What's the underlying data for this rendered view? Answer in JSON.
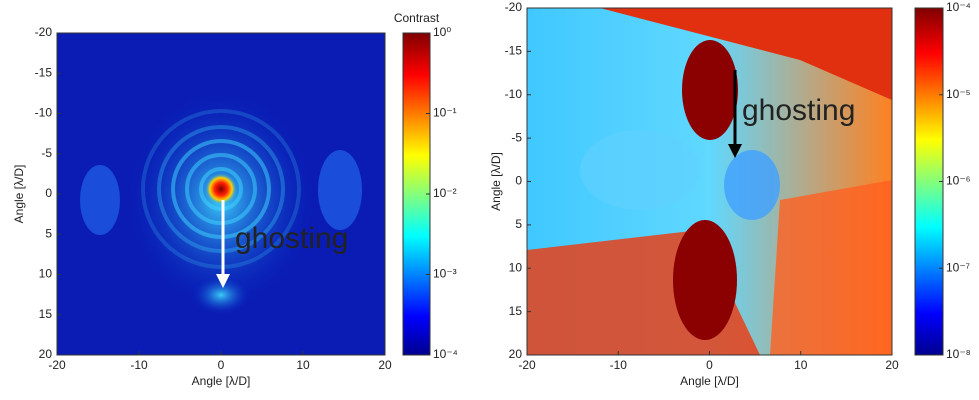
{
  "chart_data": [
    {
      "type": "heatmap",
      "xlabel": "Angle [λ/D]",
      "ylabel": "Angle [λ/D]",
      "colorbar_label": "Contrast",
      "xlim": [
        -20,
        20
      ],
      "xticks": [
        -20,
        -10,
        0,
        10,
        20
      ],
      "ylim": [
        20,
        -20
      ],
      "yticks": [
        -20,
        -15,
        -10,
        -5,
        0,
        5,
        10,
        15,
        20
      ],
      "clim": [
        0.0001,
        1
      ],
      "log_color": true,
      "colormap": "jet",
      "cticks": [
        {
          "value": 1,
          "label": "10⁰"
        },
        {
          "value": 0.1,
          "label": "10⁻¹"
        },
        {
          "value": 0.01,
          "label": "10⁻²"
        },
        {
          "value": 0.001,
          "label": "10⁻³"
        },
        {
          "value": 0.0001,
          "label": "10⁻⁴"
        }
      ],
      "annotation": "ghosting"
    },
    {
      "type": "heatmap",
      "xlabel": "Angle [λ/D]",
      "ylabel": "Angle [λ/D]",
      "xlim": [
        -20,
        20
      ],
      "xticks": [
        -20,
        -10,
        0,
        10,
        20
      ],
      "ylim": [
        20,
        -20
      ],
      "yticks": [
        -20,
        -15,
        -10,
        -5,
        0,
        5,
        10,
        15,
        20
      ],
      "clim": [
        1e-08,
        0.0001
      ],
      "log_color": true,
      "colormap": "jet",
      "cticks": [
        {
          "value": 0.0001,
          "label": "10⁻⁴"
        },
        {
          "value": 1e-05,
          "label": "10⁻⁵"
        },
        {
          "value": 1e-06,
          "label": "10⁻⁶"
        },
        {
          "value": 1e-07,
          "label": "10⁻⁷"
        },
        {
          "value": 1e-08,
          "label": "10⁻⁸"
        }
      ],
      "annotation": "ghosting"
    }
  ]
}
